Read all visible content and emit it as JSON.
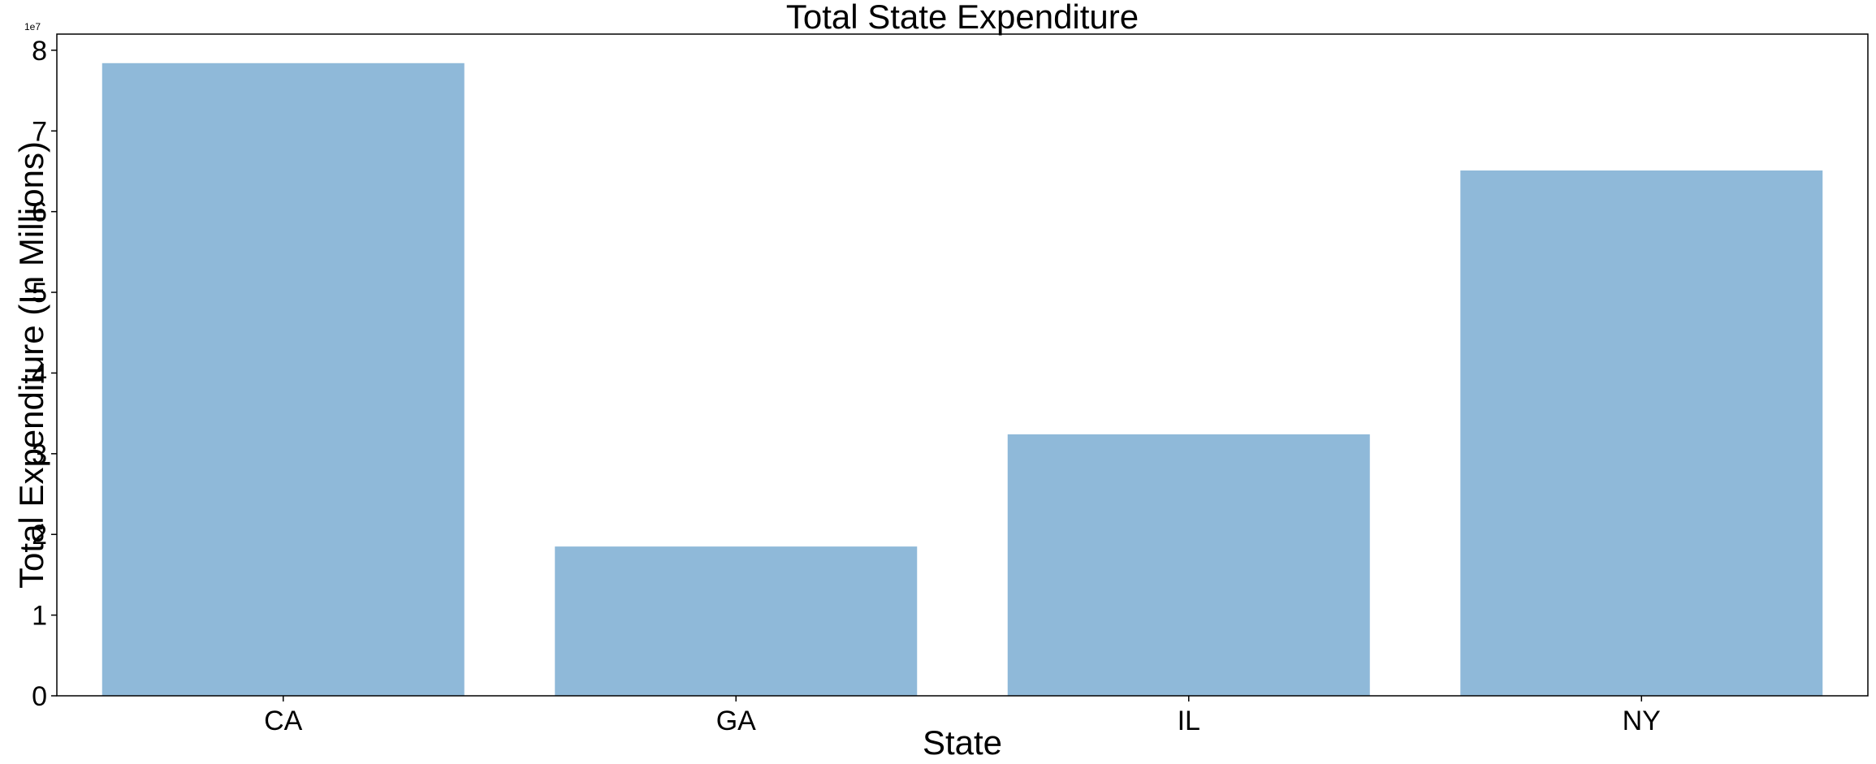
{
  "chart_data": {
    "type": "bar",
    "title": "Total State Expenditure",
    "xlabel": "State",
    "ylabel": "Total Expenditure (In Millions)",
    "categories": [
      "CA",
      "GA",
      "IL",
      "NY"
    ],
    "values": [
      78400000,
      18500000,
      32400000,
      65100000
    ],
    "ylim": [
      0,
      82000000
    ],
    "y_ticks": [
      0,
      1,
      2,
      3,
      4,
      5,
      6,
      7,
      8
    ],
    "y_tick_multiplier": "1e7",
    "bar_color": "#8fb9d9",
    "grid": false,
    "legend": "none"
  }
}
